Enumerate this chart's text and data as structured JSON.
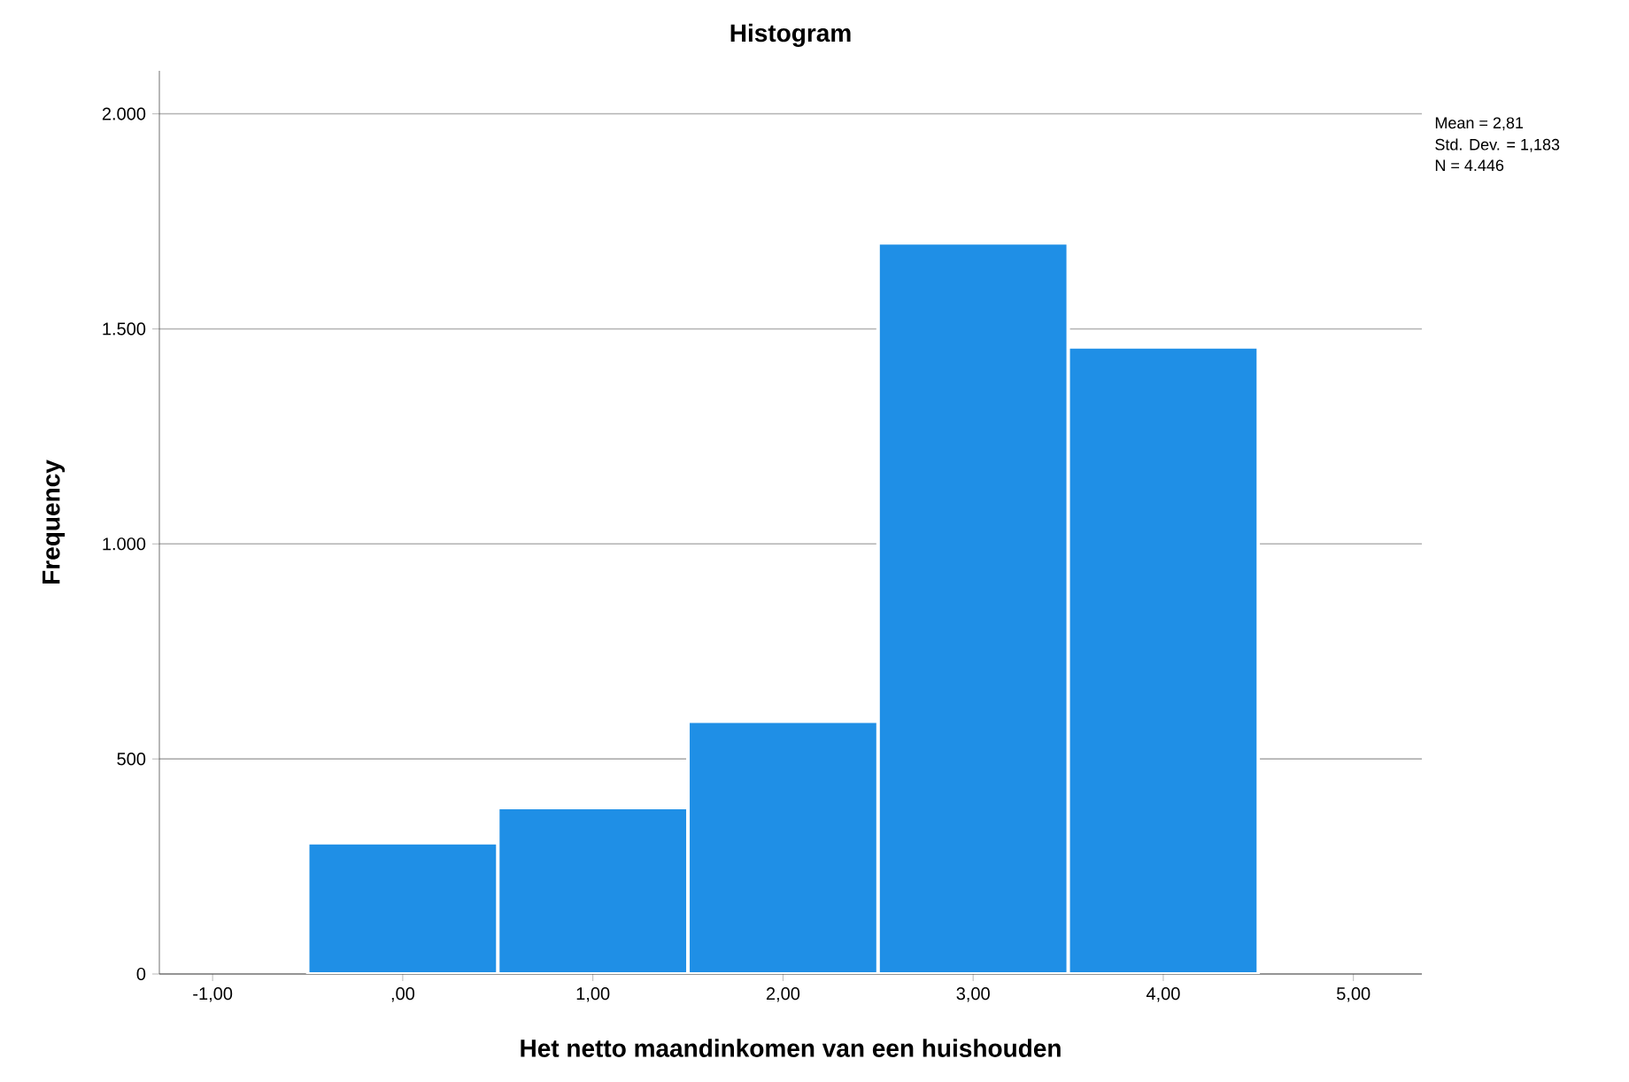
{
  "chart_data": {
    "type": "histogram",
    "title": "Histogram",
    "xlabel": "Het netto maandinkomen van een huishouden",
    "ylabel": "Frequency",
    "bins": [
      -0.5,
      0.5,
      1.5,
      2.5,
      3.5,
      4.5
    ],
    "values": [
      305,
      387,
      588,
      1700,
      1458
    ],
    "color": "#1f8fe6",
    "xlim": [
      -1.28,
      5.36
    ],
    "ylim": [
      0,
      2100
    ],
    "xticks": [
      {
        "value": -1,
        "label": "-1,00"
      },
      {
        "value": 0,
        "label": ",00"
      },
      {
        "value": 1,
        "label": "1,00"
      },
      {
        "value": 2,
        "label": "2,00"
      },
      {
        "value": 3,
        "label": "3,00"
      },
      {
        "value": 4,
        "label": "4,00"
      },
      {
        "value": 5,
        "label": "5,00"
      }
    ],
    "yticks": [
      {
        "value": 0,
        "label": "0"
      },
      {
        "value": 500,
        "label": "500"
      },
      {
        "value": 1000,
        "label": "1.000"
      },
      {
        "value": 1500,
        "label": "1.500"
      },
      {
        "value": 2000,
        "label": "2.000"
      }
    ],
    "grid": "y",
    "annotations": [
      "Mean = 2,81",
      "Std. Dev. = 1,183",
      "N = 4.446"
    ]
  }
}
